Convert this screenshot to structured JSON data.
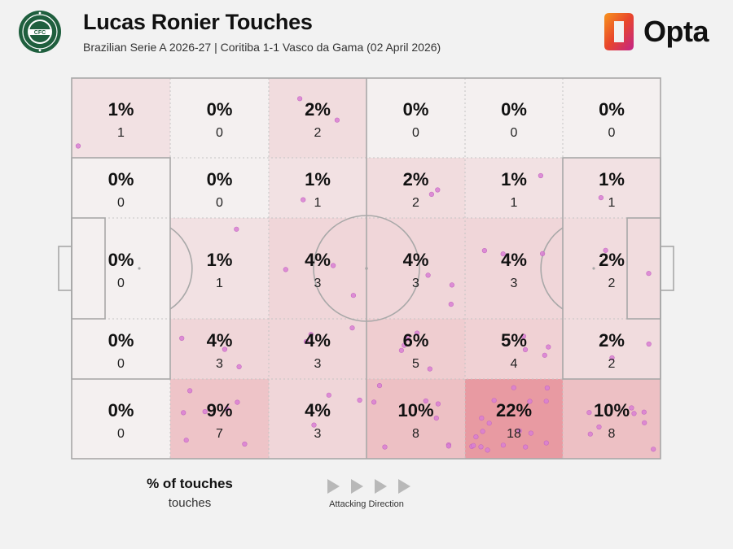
{
  "header": {
    "title": "Lucas Ronier Touches",
    "subtitle": "Brazilian Serie A 2026-27 | Coritiba 1-1 Vasco da Gama (02 April 2026)",
    "brand": "Opta",
    "club_logo_text": "CORITIBA FOOT BALL CLUB • PARANÁ • CFC"
  },
  "legend": {
    "title": "% of touches",
    "subtitle": "touches",
    "direction_label": "Attacking Direction"
  },
  "colors": {
    "background": "#f2f2f2",
    "zone_scale_max": "#e89aa2",
    "dot": "#d97fd3",
    "line": "#a8a8a8",
    "club_green": "#1f5f3e",
    "brand_orange": "#f27b1e",
    "brand_magenta": "#c2248a"
  },
  "chart_data": {
    "type": "heatmap",
    "title": "Lucas Ronier Touches",
    "subtitle": "Brazilian Serie A 2026-27 | Coritiba 1-1 Vasco da Gama (02 April 2026)",
    "attacking_direction": "left-to-right",
    "total_touches": 81,
    "zones": [
      {
        "row": 1,
        "col": 1,
        "pct": "1%",
        "count": 1
      },
      {
        "row": 1,
        "col": 2,
        "pct": "0%",
        "count": 0
      },
      {
        "row": 1,
        "col": 3,
        "pct": "2%",
        "count": 2
      },
      {
        "row": 1,
        "col": 4,
        "pct": "0%",
        "count": 0
      },
      {
        "row": 1,
        "col": 5,
        "pct": "0%",
        "count": 0
      },
      {
        "row": 1,
        "col": 6,
        "pct": "0%",
        "count": 0
      },
      {
        "row": 2,
        "col": 1,
        "pct": "0%",
        "count": 0
      },
      {
        "row": 2,
        "col": 2,
        "pct": "0%",
        "count": 0
      },
      {
        "row": 2,
        "col": 3,
        "pct": "1%",
        "count": 1
      },
      {
        "row": 2,
        "col": 4,
        "pct": "2%",
        "count": 2
      },
      {
        "row": 2,
        "col": 5,
        "pct": "1%",
        "count": 1
      },
      {
        "row": 2,
        "col": 6,
        "pct": "1%",
        "count": 1
      },
      {
        "row": 3,
        "col": 1,
        "pct": "0%",
        "count": 0
      },
      {
        "row": 3,
        "col": 2,
        "pct": "1%",
        "count": 1
      },
      {
        "row": 3,
        "col": 3,
        "pct": "4%",
        "count": 3
      },
      {
        "row": 3,
        "col": 4,
        "pct": "4%",
        "count": 3
      },
      {
        "row": 3,
        "col": 5,
        "pct": "4%",
        "count": 3
      },
      {
        "row": 3,
        "col": 6,
        "pct": "2%",
        "count": 2
      },
      {
        "row": 4,
        "col": 1,
        "pct": "0%",
        "count": 0
      },
      {
        "row": 4,
        "col": 2,
        "pct": "4%",
        "count": 3
      },
      {
        "row": 4,
        "col": 3,
        "pct": "4%",
        "count": 3
      },
      {
        "row": 4,
        "col": 4,
        "pct": "6%",
        "count": 5
      },
      {
        "row": 4,
        "col": 5,
        "pct": "5%",
        "count": 4
      },
      {
        "row": 4,
        "col": 6,
        "pct": "2%",
        "count": 2
      },
      {
        "row": 5,
        "col": 1,
        "pct": "0%",
        "count": 0
      },
      {
        "row": 5,
        "col": 2,
        "pct": "9%",
        "count": 7
      },
      {
        "row": 5,
        "col": 3,
        "pct": "4%",
        "count": 3
      },
      {
        "row": 5,
        "col": 4,
        "pct": "10%",
        "count": 8
      },
      {
        "row": 5,
        "col": 5,
        "pct": "22%",
        "count": 18
      },
      {
        "row": 5,
        "col": 6,
        "pct": "10%",
        "count": 8
      }
    ]
  }
}
